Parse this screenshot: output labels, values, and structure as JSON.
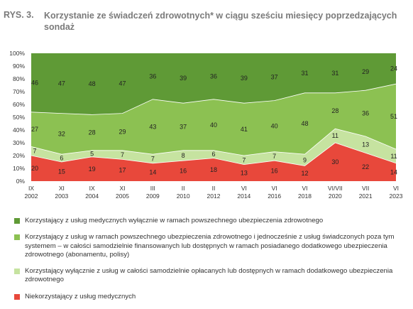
{
  "figure": {
    "label": "RYS. 3.",
    "title": "Korzystanie ze świadczeń zdrowotnych* w ciągu sześciu miesięcy poprzedzających sondaż"
  },
  "chart_data": {
    "type": "area",
    "stacked": true,
    "categories": [
      {
        "line1": "IX",
        "line2": "2002"
      },
      {
        "line1": "XI",
        "line2": "2003"
      },
      {
        "line1": "IX",
        "line2": "2004"
      },
      {
        "line1": "XI",
        "line2": "2005"
      },
      {
        "line1": "III",
        "line2": "2009"
      },
      {
        "line1": "II",
        "line2": "2010"
      },
      {
        "line1": "II",
        "line2": "2012"
      },
      {
        "line1": "VI",
        "line2": "2014"
      },
      {
        "line1": "VI",
        "line2": "2016"
      },
      {
        "line1": "VI",
        "line2": "2018"
      },
      {
        "line1": "VI/VII",
        "line2": "2020"
      },
      {
        "line1": "VII",
        "line2": "2021"
      },
      {
        "line1": "VI",
        "line2": "2023"
      }
    ],
    "y_ticks": [
      "0%",
      "10%",
      "20%",
      "30%",
      "40%",
      "50%",
      "60%",
      "70%",
      "80%",
      "90%",
      "100%"
    ],
    "ylim": [
      0,
      100
    ],
    "grid": false,
    "legend_placement": "bottom",
    "series": [
      {
        "name": "Niekorzystający z usług medycznych",
        "color": "#e8483b",
        "values": [
          20,
          15,
          19,
          17,
          14,
          16,
          18,
          13,
          16,
          12,
          30,
          22,
          14
        ]
      },
      {
        "name": "Korzystający wyłącznie z usług w całości samodzielnie opłacanych lub dostępnych w ramach dodatkowego ubezpieczenia zdrowotnego",
        "color": "#c6e3a0",
        "values": [
          7,
          6,
          5,
          7,
          7,
          8,
          6,
          7,
          7,
          9,
          11,
          13,
          11
        ]
      },
      {
        "name": "Korzystający z usług w ramach powszechnego ubezpieczenia zdrowotnego i jednocześnie z usług świadczonych poza tym systemem – w całości samodzielnie finansowanych lub dostępnych w ramach posiadanego dodatkowego ubezpieczenia zdrowotnego (abonamentu, polisy)",
        "color": "#8cc152",
        "values": [
          27,
          32,
          28,
          29,
          43,
          37,
          40,
          41,
          40,
          48,
          28,
          36,
          51
        ]
      },
      {
        "name": "Korzystający z usług medycznych wyłącznie w ramach powszechnego ubezpieczenia zdrowotnego",
        "color": "#5f9a36",
        "values": [
          46,
          47,
          48,
          47,
          36,
          39,
          36,
          39,
          37,
          31,
          31,
          29,
          24
        ]
      }
    ],
    "legend_order": [
      3,
      2,
      1,
      0
    ]
  }
}
